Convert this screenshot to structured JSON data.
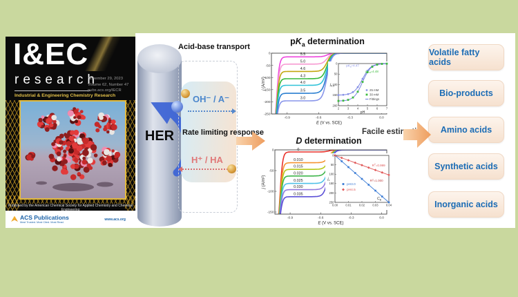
{
  "page": {
    "bg": "#c9d89e",
    "panel_bg": "#ffffff",
    "accent_blue": "#1b6cb5",
    "accent_orange": "#f0a36a"
  },
  "cover": {
    "masthead": "I&EC",
    "masthead_sub": "research",
    "tagline": "Industrial & Engineering Chemistry Research",
    "date": "November 29, 2023",
    "issue": "Volume 62, Number 47",
    "site": "pubs.acs.org/IECR",
    "footer": "Published by the American Chemical Society for Applied Chemistry and Chemical Engineering",
    "publisher": "ACS Publications",
    "publisher_tagline": "Most Trusted. Most Cited. Most Read.",
    "publisher_site": "www.acs.org"
  },
  "mechanism": {
    "electrode": "HER",
    "transport_title": "Acid-base transport",
    "base_pair": "OH⁻ / A⁻",
    "response": "Rate limiting response",
    "acid_pair": "H⁺ / HA"
  },
  "estimation_label": "Facile estimation",
  "applications": [
    "Volatile fatty acids",
    "Bio-products",
    "Amino acids",
    "Synthetic acids",
    "Inorganic acids"
  ],
  "chart_data": [
    {
      "type": "line",
      "title": {
        "prefix": "p",
        "italic": "K",
        "sub": "a",
        "rest": " determination"
      },
      "xlabel": [
        {
          "t": "E",
          "i": 1
        },
        {
          "t": " (V vs. SCE)"
        }
      ],
      "ylabel": [
        {
          "t": "j",
          "i": 1
        },
        {
          "t": " (A/m²)"
        }
      ],
      "xlim": [
        -1.05,
        0.05
      ],
      "ylim": [
        -250,
        0
      ],
      "xticks": [
        "-0.9",
        "-0.6",
        "-0.3",
        "0.0"
      ],
      "yticks": [
        0,
        -50,
        -100,
        -150,
        -200,
        -250
      ],
      "half_wave": -0.52,
      "curve_label_x": -0.75,
      "series": [
        {
          "label": "5.5",
          "color": "#ee44dd",
          "plateau": -15
        },
        {
          "label": "5.0",
          "color": "#f79ad2",
          "plateau": -45
        },
        {
          "label": "4.6",
          "color": "#c2a60e",
          "plateau": -75
        },
        {
          "label": "4.3",
          "color": "#35b83a",
          "plateau": -105
        },
        {
          "label": "4.0",
          "color": "#30c2d8",
          "plateau": -132
        },
        {
          "label": "3.5",
          "color": "#2a7fd0",
          "plateau": -165
        },
        {
          "label": "3.0",
          "color": "#8895ea",
          "plateau": -196
        }
      ],
      "inset": {
        "kind": "sigmoid",
        "xlabel": [
          {
            "t": "pH"
          }
        ],
        "ylabel": [
          {
            "t": "j",
            "i": 1
          },
          {
            "t": "0.5",
            "s": 1
          }
        ],
        "xlim": [
          2,
          7
        ],
        "ylim": [
          0,
          200
        ],
        "xticks": [
          "2",
          "3",
          "4",
          "5",
          "6",
          "7"
        ],
        "yticks": [
          0,
          50,
          100,
          150,
          200
        ],
        "fit_color": "#6a77dd",
        "fit_label": "Fittings",
        "series": [
          {
            "name": "25 mM",
            "marker": "circle",
            "color": "#8892e8",
            "amplitude": 150,
            "pka": 4.47,
            "annotation": [
              {
                "t": "p"
              },
              {
                "t": "K",
                "i": 1
              },
              {
                "t": "a",
                "s": 1
              },
              {
                "t": "=4.47"
              }
            ],
            "ann_at": [
              2.8,
              14
            ]
          },
          {
            "name": "30 mM",
            "marker": "square",
            "color": "#3dbb3d",
            "amplitude": 178,
            "pka": 4.48,
            "annotation": [
              {
                "t": "p"
              },
              {
                "t": "K",
                "i": 1
              },
              {
                "t": "a",
                "s": 1
              },
              {
                "t": "=4.48"
              }
            ],
            "ann_at": [
              4.8,
              42
            ]
          }
        ]
      }
    },
    {
      "type": "line",
      "title": {
        "italic": "D",
        "rest": " determination"
      },
      "xlabel": [
        {
          "t": "E",
          "i": 1
        },
        {
          "t": " (V vs. SCE)"
        }
      ],
      "ylabel": [
        {
          "t": "j",
          "i": 1
        },
        {
          "t": " (A/m²)"
        }
      ],
      "xlim": [
        -1.05,
        0.05
      ],
      "ylim": [
        -155,
        0
      ],
      "xticks": [
        "-0.9",
        "-0.6",
        "-0.3",
        "0.0"
      ],
      "yticks": [
        0,
        -50,
        -100,
        -150
      ],
      "half_wave": -0.52,
      "curve_label_x": -0.82,
      "series": [
        {
          "label": "0",
          "color": "#e8312a",
          "plateau": -5
        },
        {
          "label": "0.010",
          "color": "#f59331",
          "plateau": -31
        },
        {
          "label": "0.015",
          "color": "#b5c918",
          "plateau": -47
        },
        {
          "label": "0.020",
          "color": "#3db54a",
          "plateau": -63
        },
        {
          "label": "0.025",
          "color": "#4fc0e8",
          "plateau": -81
        },
        {
          "label": "0.030",
          "color": "#9279dd",
          "plateau": -96
        },
        {
          "label": "0.035",
          "color": "#5b4fd6",
          "plateau": -113
        }
      ],
      "inset": {
        "kind": "linear",
        "xlabel": [
          {
            "t": "C",
            "i": 1
          },
          {
            "t": "B",
            "s": 1
          }
        ],
        "ylabel": [
          {
            "t": "j",
            "i": 1
          },
          {
            "t": "L",
            "s": 1
          }
        ],
        "xlim": [
          0,
          0.04
        ],
        "ylim": [
          0,
          250
        ],
        "xticks": [
          "0.00",
          "0.01",
          "0.02",
          "0.03",
          "0.04"
        ],
        "yticks": [
          0,
          50,
          100,
          150,
          200,
          250
        ],
        "series": [
          {
            "name": "pH3.0",
            "marker": "square",
            "color": "#3a7bd5",
            "slope": 6250,
            "annotation": [
              {
                "t": "R"
              },
              {
                "t": "2",
                "u": 1
              },
              {
                "t": "=1.000"
              }
            ],
            "ann_color": "#c04545",
            "ann_at": [
              0.026,
              140
            ]
          },
          {
            "name": "pH4.5",
            "marker": "diamond",
            "color": "#e05858",
            "slope": 2600,
            "annotation": [
              {
                "t": "R"
              },
              {
                "t": "2",
                "u": 1
              },
              {
                "t": "=0.999"
              }
            ],
            "ann_color": "#e05858",
            "ann_at": [
              0.0275,
              58
            ]
          }
        ]
      }
    }
  ]
}
